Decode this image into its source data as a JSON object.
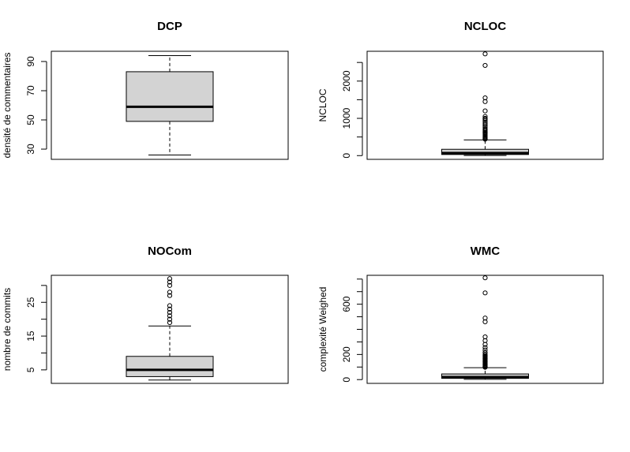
{
  "chart_data": [
    {
      "type": "box",
      "title": "DCP",
      "xlabel": "",
      "ylabel": "densité de commentaires",
      "ylim": [
        23,
        97
      ],
      "yticks": [
        30,
        50,
        70,
        90
      ],
      "yticks_labeled": [
        30,
        50,
        70,
        90
      ],
      "box": {
        "whisker_low": 26,
        "q1": 49,
        "median": 59,
        "q3": 83,
        "whisker_high": 94
      },
      "outliers": [],
      "box_fill": "#d3d3d3"
    },
    {
      "type": "box",
      "title": "NCLOC",
      "xlabel": "",
      "ylabel": "NCLOC",
      "ylim": [
        -100,
        2800
      ],
      "yticks": [
        0,
        500,
        1000,
        1500,
        2000,
        2500
      ],
      "yticks_labeled": [
        0,
        1000,
        2000
      ],
      "box": {
        "whisker_low": 2,
        "q1": 30,
        "median": 70,
        "q3": 170,
        "whisker_high": 420
      },
      "outliers": [
        440,
        460,
        480,
        500,
        520,
        540,
        560,
        580,
        600,
        620,
        650,
        680,
        700,
        720,
        760,
        800,
        850,
        900,
        940,
        980,
        1000,
        1050,
        1200,
        1450,
        1550,
        2420,
        2730
      ],
      "box_fill": "#d3d3d3"
    },
    {
      "type": "box",
      "title": "NOCom",
      "xlabel": "",
      "ylabel": "nombre de commits",
      "ylim": [
        1,
        33
      ],
      "yticks": [
        5,
        10,
        15,
        20,
        25,
        30
      ],
      "yticks_labeled": [
        5,
        15,
        25
      ],
      "box": {
        "whisker_low": 2,
        "q1": 3,
        "median": 5,
        "q3": 9,
        "whisker_high": 18
      },
      "outliers": [
        19,
        20,
        21,
        22,
        23,
        24,
        27,
        28,
        30,
        31,
        32
      ],
      "box_fill": "#d3d3d3"
    },
    {
      "type": "box",
      "title": "WMC",
      "xlabel": "",
      "ylabel": "complexité Weighed",
      "ylim": [
        -30,
        830
      ],
      "yticks": [
        0,
        100,
        200,
        300,
        400,
        500,
        600,
        700,
        800
      ],
      "yticks_labeled": [
        0,
        200,
        600
      ],
      "box": {
        "whisker_low": 2,
        "q1": 10,
        "median": 20,
        "q3": 45,
        "whisker_high": 95
      },
      "outliers": [
        98,
        102,
        106,
        110,
        115,
        120,
        125,
        130,
        135,
        140,
        145,
        150,
        155,
        160,
        165,
        170,
        175,
        180,
        185,
        190,
        200,
        215,
        235,
        255,
        280,
        310,
        340,
        460,
        490,
        690,
        810
      ],
      "box_fill": "#d3d3d3"
    }
  ]
}
